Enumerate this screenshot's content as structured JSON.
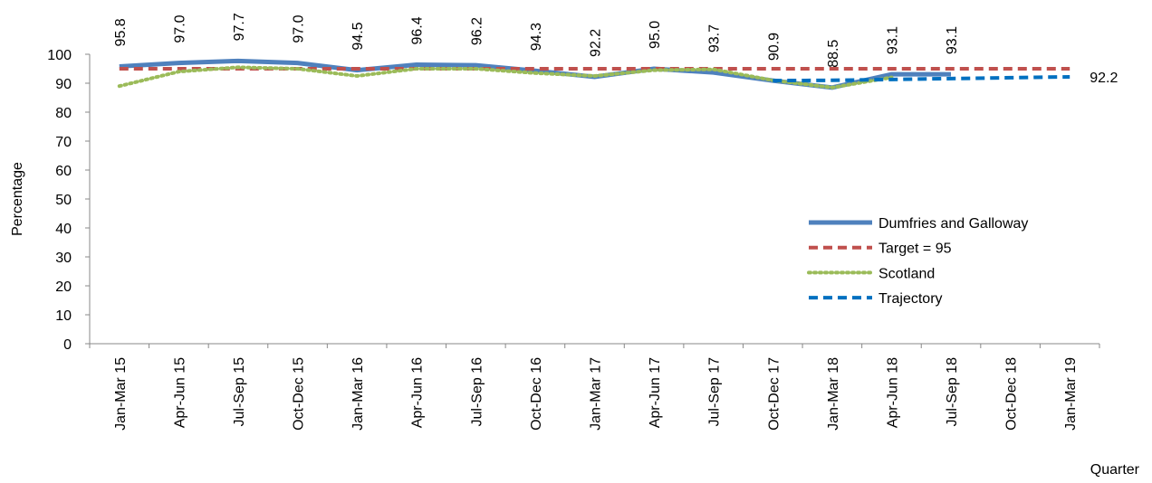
{
  "chart_data": {
    "type": "line",
    "x_label": "Quarter",
    "y_label": "Percentage",
    "categories": [
      "Jan-Mar 15",
      "Apr-Jun 15",
      "Jul-Sep 15",
      "Oct-Dec 15",
      "Jan-Mar 16",
      "Apr-Jun 16",
      "Jul-Sep 16",
      "Oct-Dec 16",
      "Jan-Mar 17",
      "Apr-Jun 17",
      "Jul-Sep 17",
      "Oct-Dec 17",
      "Jan-Mar 18",
      "Apr-Jun 18",
      "Jul-Sep 18",
      "Oct-Dec 18",
      "Jan-Mar 19"
    ],
    "series": [
      {
        "name": "Dumfries and Galloway",
        "color": "#4f81bd",
        "style": "solid",
        "values": [
          95.8,
          97.0,
          97.7,
          97.0,
          94.5,
          96.4,
          96.2,
          94.3,
          92.2,
          95.0,
          93.7,
          90.9,
          88.5,
          93.1,
          93.1,
          null,
          null
        ],
        "value_labels": [
          "95.8",
          "97.0",
          "97.7",
          "97.0",
          "94.5",
          "96.4",
          "96.2",
          "94.3",
          "92.2",
          "95.0",
          "93.7",
          "90.9",
          "88.5",
          "93.1",
          "93.1",
          null,
          null
        ]
      },
      {
        "name": "Target = 95",
        "color": "#c0504d",
        "style": "dashed",
        "values": [
          95,
          95,
          95,
          95,
          95,
          95,
          95,
          95,
          95,
          95,
          95,
          95,
          95,
          95,
          95,
          95,
          95
        ]
      },
      {
        "name": "Scotland",
        "color": "#9bbb59",
        "style": "dotted",
        "values": [
          89,
          94,
          95.5,
          95,
          92.5,
          95,
          95,
          93.5,
          92.5,
          94.5,
          94.8,
          91,
          88.5,
          92,
          null,
          null,
          null
        ]
      },
      {
        "name": "Trajectory",
        "color": "#0070c0",
        "style": "dashed",
        "values": [
          null,
          null,
          null,
          null,
          null,
          null,
          null,
          null,
          null,
          null,
          null,
          90.9,
          91.0,
          91.3,
          91.6,
          91.9,
          92.2
        ],
        "data_labels": "last"
      }
    ],
    "ylim": [
      0,
      100
    ],
    "yticks": [
      0,
      10,
      20,
      30,
      40,
      50,
      60,
      70,
      80,
      90,
      100
    ],
    "grid": false,
    "legend": "right"
  }
}
